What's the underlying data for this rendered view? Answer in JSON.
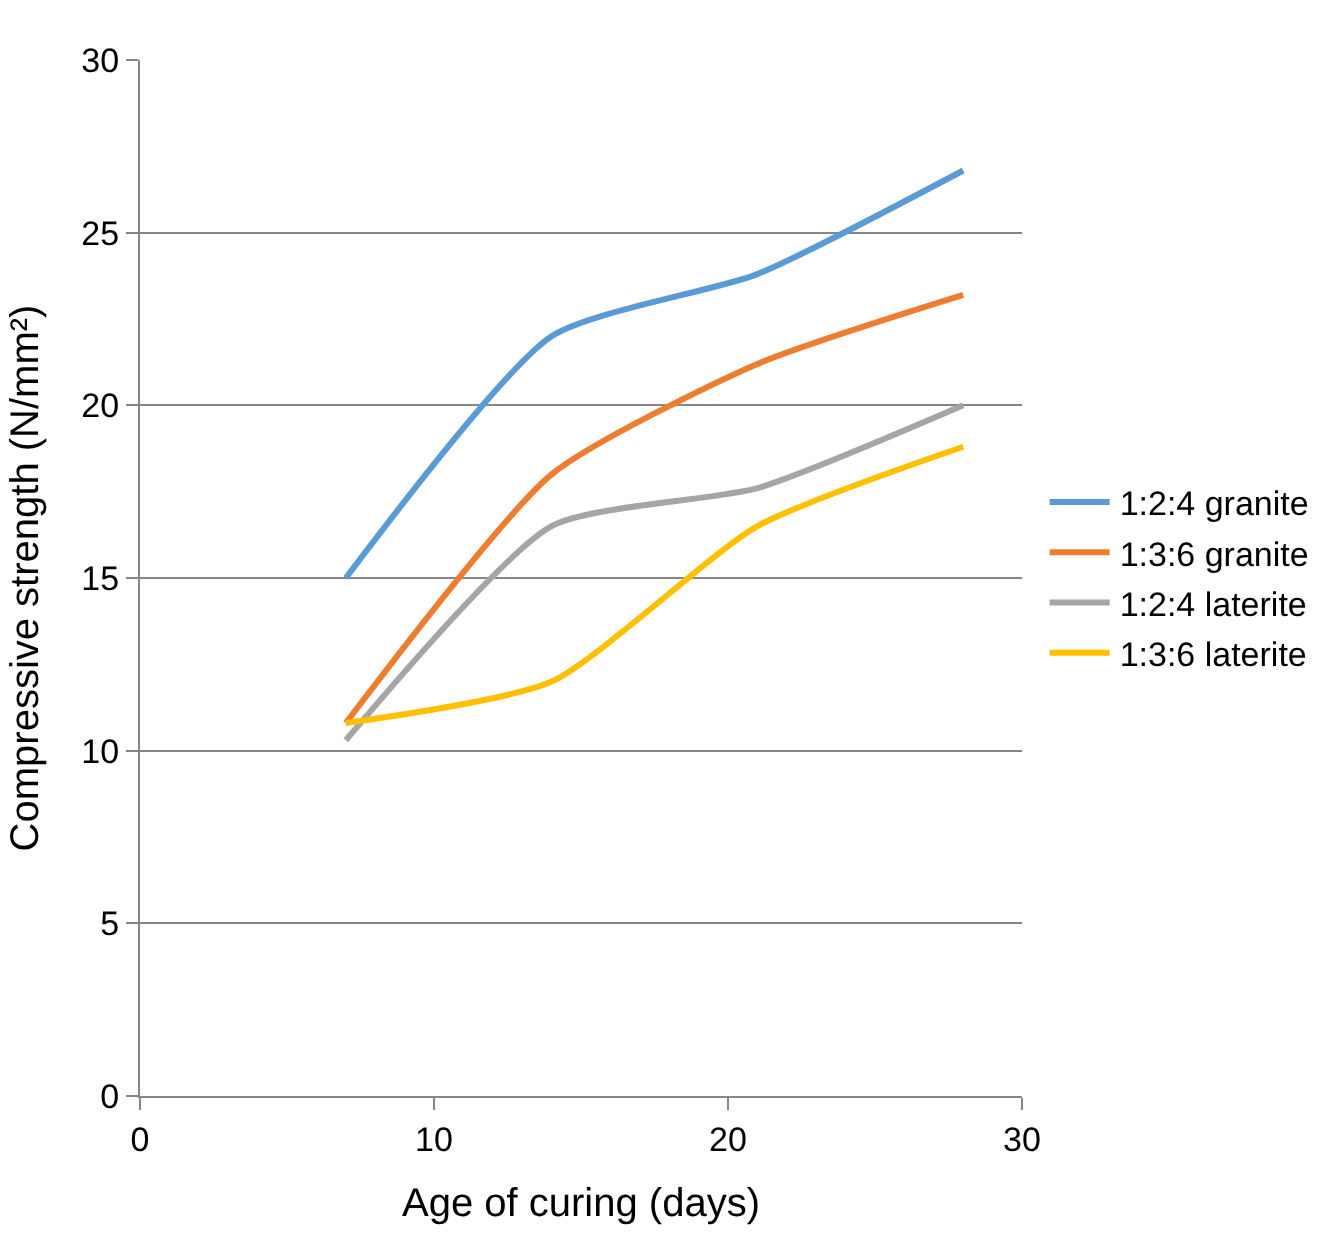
{
  "chart_data": {
    "type": "line",
    "xlabel": "Age of curing (days)",
    "ylabel": "Compressive strength (N/mm²)",
    "x": [
      7,
      14,
      21,
      28
    ],
    "series": [
      {
        "name": "1:2:4 granite",
        "color": "#5b9bd5",
        "values": [
          15,
          22,
          23.8,
          26.8
        ]
      },
      {
        "name": "1:3:6 granite",
        "color": "#ed7d31",
        "values": [
          10.8,
          18,
          21.2,
          23.2
        ]
      },
      {
        "name": "1:2:4 laterite",
        "color": "#a5a5a5",
        "values": [
          10.3,
          16.5,
          17.6,
          20
        ]
      },
      {
        "name": "1:3:6 laterite",
        "color": "#ffc000",
        "values": [
          10.8,
          12,
          16.5,
          18.8
        ]
      }
    ],
    "xlim": [
      0,
      30
    ],
    "xticks": [
      0,
      10,
      20,
      30
    ],
    "ylim": [
      0,
      30
    ],
    "yticks": [
      0,
      5,
      10,
      15,
      20,
      25,
      30
    ],
    "grid": "y",
    "legend": "right",
    "marker": "none",
    "line_style": "solid"
  }
}
